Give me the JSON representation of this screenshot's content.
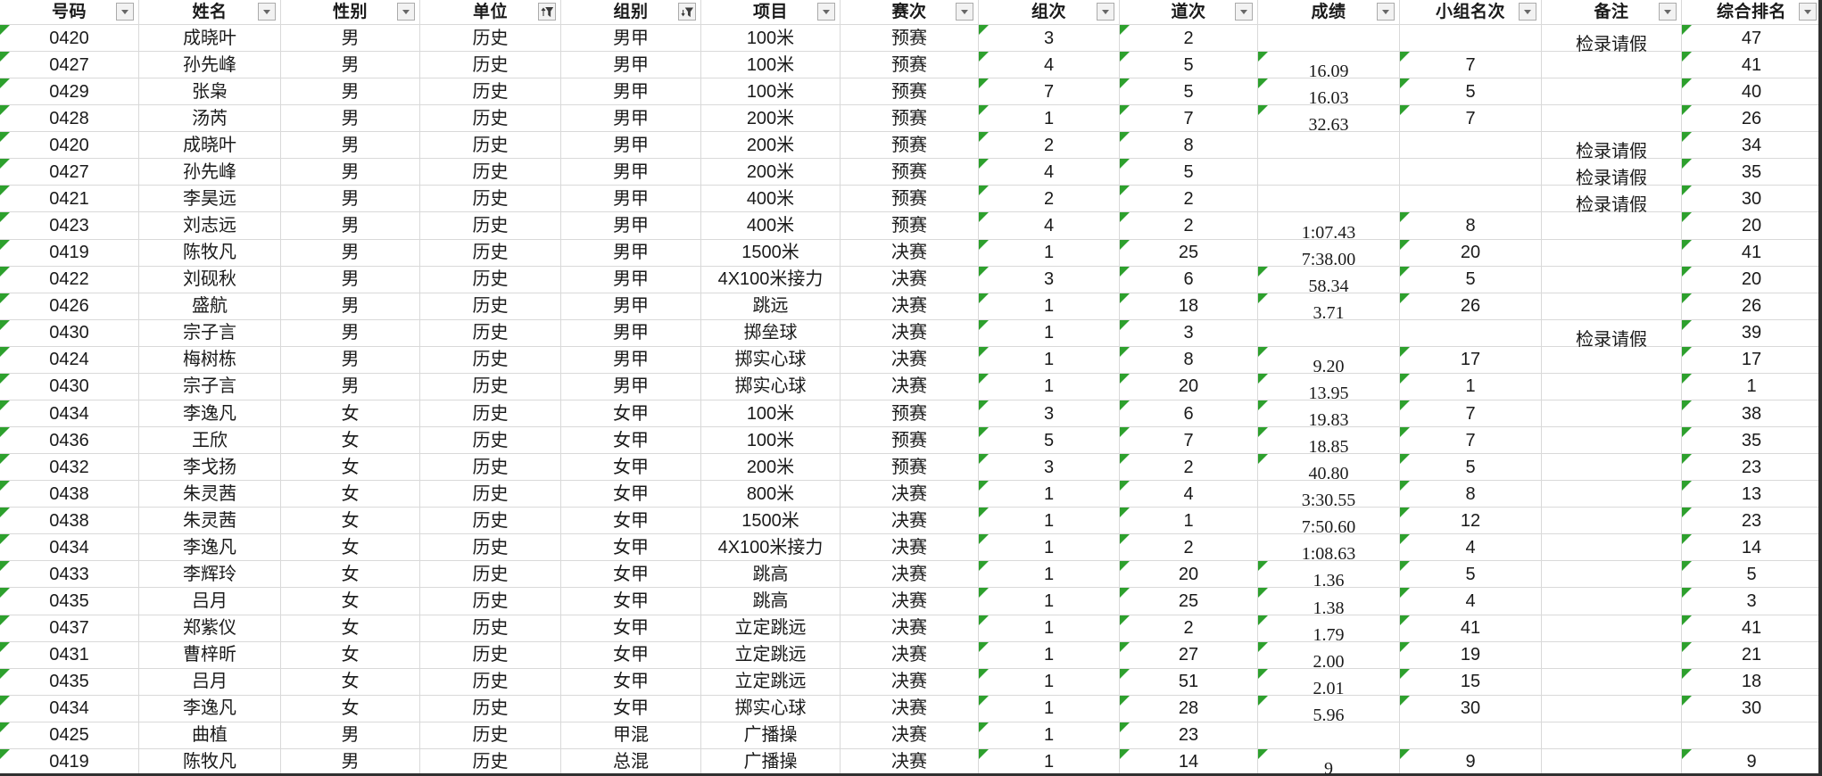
{
  "app": {
    "description": "spreadsheet with autofilter header row"
  },
  "colors": {
    "error_triangle_green": "#2da02d",
    "gridline": "#d9d9d9",
    "text": "#1a1a1a",
    "filter_button_bg": "#f2f2f2",
    "filter_button_border": "#ababab",
    "window_edge": "#303030"
  },
  "table": {
    "columns": [
      {
        "key": "id",
        "label": "号码",
        "filter_icon": "dropdown"
      },
      {
        "key": "name",
        "label": "姓名",
        "filter_icon": "dropdown"
      },
      {
        "key": "gender",
        "label": "性别",
        "filter_icon": "dropdown"
      },
      {
        "key": "unit",
        "label": "单位",
        "filter_icon": "sort-filter"
      },
      {
        "key": "group",
        "label": "组别",
        "filter_icon": "filter"
      },
      {
        "key": "event",
        "label": "项目",
        "filter_icon": "dropdown"
      },
      {
        "key": "round",
        "label": "赛次",
        "filter_icon": "dropdown"
      },
      {
        "key": "heat",
        "label": "组次",
        "filter_icon": "dropdown"
      },
      {
        "key": "lane",
        "label": "道次",
        "filter_icon": "dropdown"
      },
      {
        "key": "score",
        "label": "成绩",
        "filter_icon": "dropdown"
      },
      {
        "key": "rank",
        "label": "小组名次",
        "filter_icon": "dropdown"
      },
      {
        "key": "note",
        "label": "备注",
        "filter_icon": "dropdown"
      },
      {
        "key": "overall",
        "label": "综合排名",
        "filter_icon": "dropdown"
      }
    ],
    "rows": [
      {
        "id": "0420",
        "name": "成晓叶",
        "gender": "男",
        "unit": "历史",
        "group": "男甲",
        "event": "100米",
        "round": "预赛",
        "heat": "3",
        "lane": "2",
        "score": "",
        "score_indicator": false,
        "rank": "",
        "note": "检录请假",
        "overall": "47"
      },
      {
        "id": "0427",
        "name": "孙先峰",
        "gender": "男",
        "unit": "历史",
        "group": "男甲",
        "event": "100米",
        "round": "预赛",
        "heat": "4",
        "lane": "5",
        "score": "16.09",
        "score_indicator": true,
        "rank": "7",
        "note": "",
        "overall": "41"
      },
      {
        "id": "0429",
        "name": "张枭",
        "gender": "男",
        "unit": "历史",
        "group": "男甲",
        "event": "100米",
        "round": "预赛",
        "heat": "7",
        "lane": "5",
        "score": "16.03",
        "score_indicator": true,
        "rank": "5",
        "note": "",
        "overall": "40"
      },
      {
        "id": "0428",
        "name": "汤芮",
        "gender": "男",
        "unit": "历史",
        "group": "男甲",
        "event": "200米",
        "round": "预赛",
        "heat": "1",
        "lane": "7",
        "score": "32.63",
        "score_indicator": true,
        "rank": "7",
        "note": "",
        "overall": "26"
      },
      {
        "id": "0420",
        "name": "成晓叶",
        "gender": "男",
        "unit": "历史",
        "group": "男甲",
        "event": "200米",
        "round": "预赛",
        "heat": "2",
        "lane": "8",
        "score": "",
        "score_indicator": false,
        "rank": "",
        "note": "检录请假",
        "overall": "34"
      },
      {
        "id": "0427",
        "name": "孙先峰",
        "gender": "男",
        "unit": "历史",
        "group": "男甲",
        "event": "200米",
        "round": "预赛",
        "heat": "4",
        "lane": "5",
        "score": "",
        "score_indicator": false,
        "rank": "",
        "note": "检录请假",
        "overall": "35"
      },
      {
        "id": "0421",
        "name": "李昊远",
        "gender": "男",
        "unit": "历史",
        "group": "男甲",
        "event": "400米",
        "round": "预赛",
        "heat": "2",
        "lane": "2",
        "score": "",
        "score_indicator": false,
        "rank": "",
        "note": "检录请假",
        "overall": "30"
      },
      {
        "id": "0423",
        "name": "刘志远",
        "gender": "男",
        "unit": "历史",
        "group": "男甲",
        "event": "400米",
        "round": "预赛",
        "heat": "4",
        "lane": "2",
        "score": "1:07.43",
        "score_indicator": false,
        "rank": "8",
        "note": "",
        "overall": "20"
      },
      {
        "id": "0419",
        "name": "陈牧凡",
        "gender": "男",
        "unit": "历史",
        "group": "男甲",
        "event": "1500米",
        "round": "决赛",
        "heat": "1",
        "lane": "25",
        "score": "7:38.00",
        "score_indicator": false,
        "rank": "20",
        "note": "",
        "overall": "41"
      },
      {
        "id": "0422",
        "name": "刘砚秋",
        "gender": "男",
        "unit": "历史",
        "group": "男甲",
        "event": "4X100米接力",
        "round": "决赛",
        "heat": "3",
        "lane": "6",
        "score": "58.34",
        "score_indicator": true,
        "rank": "5",
        "note": "",
        "overall": "20"
      },
      {
        "id": "0426",
        "name": "盛航",
        "gender": "男",
        "unit": "历史",
        "group": "男甲",
        "event": "跳远",
        "round": "决赛",
        "heat": "1",
        "lane": "18",
        "score": "3.71",
        "score_indicator": true,
        "rank": "26",
        "note": "",
        "overall": "26"
      },
      {
        "id": "0430",
        "name": "宗子言",
        "gender": "男",
        "unit": "历史",
        "group": "男甲",
        "event": "掷垒球",
        "round": "决赛",
        "heat": "1",
        "lane": "3",
        "score": "",
        "score_indicator": false,
        "rank": "",
        "note": "检录请假",
        "overall": "39"
      },
      {
        "id": "0424",
        "name": "梅树栋",
        "gender": "男",
        "unit": "历史",
        "group": "男甲",
        "event": "掷实心球",
        "round": "决赛",
        "heat": "1",
        "lane": "8",
        "score": "9.20",
        "score_indicator": true,
        "rank": "17",
        "note": "",
        "overall": "17"
      },
      {
        "id": "0430",
        "name": "宗子言",
        "gender": "男",
        "unit": "历史",
        "group": "男甲",
        "event": "掷实心球",
        "round": "决赛",
        "heat": "1",
        "lane": "20",
        "score": "13.95",
        "score_indicator": true,
        "rank": "1",
        "note": "",
        "overall": "1"
      },
      {
        "id": "0434",
        "name": "李逸凡",
        "gender": "女",
        "unit": "历史",
        "group": "女甲",
        "event": "100米",
        "round": "预赛",
        "heat": "3",
        "lane": "6",
        "score": "19.83",
        "score_indicator": true,
        "rank": "7",
        "note": "",
        "overall": "38"
      },
      {
        "id": "0436",
        "name": "王欣",
        "gender": "女",
        "unit": "历史",
        "group": "女甲",
        "event": "100米",
        "round": "预赛",
        "heat": "5",
        "lane": "7",
        "score": "18.85",
        "score_indicator": true,
        "rank": "7",
        "note": "",
        "overall": "35"
      },
      {
        "id": "0432",
        "name": "李戈扬",
        "gender": "女",
        "unit": "历史",
        "group": "女甲",
        "event": "200米",
        "round": "预赛",
        "heat": "3",
        "lane": "2",
        "score": "40.80",
        "score_indicator": true,
        "rank": "5",
        "note": "",
        "overall": "23"
      },
      {
        "id": "0438",
        "name": "朱灵茜",
        "gender": "女",
        "unit": "历史",
        "group": "女甲",
        "event": "800米",
        "round": "决赛",
        "heat": "1",
        "lane": "4",
        "score": "3:30.55",
        "score_indicator": false,
        "rank": "8",
        "note": "",
        "overall": "13"
      },
      {
        "id": "0438",
        "name": "朱灵茜",
        "gender": "女",
        "unit": "历史",
        "group": "女甲",
        "event": "1500米",
        "round": "决赛",
        "heat": "1",
        "lane": "1",
        "score": "7:50.60",
        "score_indicator": false,
        "rank": "12",
        "note": "",
        "overall": "23"
      },
      {
        "id": "0434",
        "name": "李逸凡",
        "gender": "女",
        "unit": "历史",
        "group": "女甲",
        "event": "4X100米接力",
        "round": "决赛",
        "heat": "1",
        "lane": "2",
        "score": "1:08.63",
        "score_indicator": false,
        "rank": "4",
        "note": "",
        "overall": "14"
      },
      {
        "id": "0433",
        "name": "李辉玲",
        "gender": "女",
        "unit": "历史",
        "group": "女甲",
        "event": "跳高",
        "round": "决赛",
        "heat": "1",
        "lane": "20",
        "score": "1.36",
        "score_indicator": true,
        "rank": "5",
        "note": "",
        "overall": "5"
      },
      {
        "id": "0435",
        "name": "吕月",
        "gender": "女",
        "unit": "历史",
        "group": "女甲",
        "event": "跳高",
        "round": "决赛",
        "heat": "1",
        "lane": "25",
        "score": "1.38",
        "score_indicator": true,
        "rank": "4",
        "note": "",
        "overall": "3"
      },
      {
        "id": "0437",
        "name": "郑紫仪",
        "gender": "女",
        "unit": "历史",
        "group": "女甲",
        "event": "立定跳远",
        "round": "决赛",
        "heat": "1",
        "lane": "2",
        "score": "1.79",
        "score_indicator": true,
        "rank": "41",
        "note": "",
        "overall": "41"
      },
      {
        "id": "0431",
        "name": "曹梓昕",
        "gender": "女",
        "unit": "历史",
        "group": "女甲",
        "event": "立定跳远",
        "round": "决赛",
        "heat": "1",
        "lane": "27",
        "score": "2.00",
        "score_indicator": true,
        "rank": "19",
        "note": "",
        "overall": "21"
      },
      {
        "id": "0435",
        "name": "吕月",
        "gender": "女",
        "unit": "历史",
        "group": "女甲",
        "event": "立定跳远",
        "round": "决赛",
        "heat": "1",
        "lane": "51",
        "score": "2.01",
        "score_indicator": true,
        "rank": "15",
        "note": "",
        "overall": "18"
      },
      {
        "id": "0434",
        "name": "李逸凡",
        "gender": "女",
        "unit": "历史",
        "group": "女甲",
        "event": "掷实心球",
        "round": "决赛",
        "heat": "1",
        "lane": "28",
        "score": "5.96",
        "score_indicator": true,
        "rank": "30",
        "note": "",
        "overall": "30"
      },
      {
        "id": "0425",
        "name": "曲植",
        "gender": "男",
        "unit": "历史",
        "group": "甲混",
        "event": "广播操",
        "round": "决赛",
        "heat": "1",
        "lane": "23",
        "score": "",
        "score_indicator": false,
        "rank": "",
        "note": "",
        "overall": ""
      },
      {
        "id": "0419",
        "name": "陈牧凡",
        "gender": "男",
        "unit": "历史",
        "group": "总混",
        "event": "广播操",
        "round": "决赛",
        "heat": "1",
        "lane": "14",
        "score": "9",
        "score_indicator": true,
        "rank": "9",
        "note": "",
        "overall": "9"
      }
    ]
  }
}
